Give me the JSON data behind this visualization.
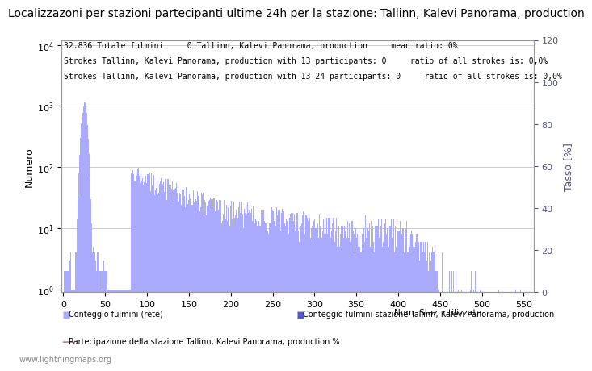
{
  "title": "Localizzazoni per stazioni partecipanti ultime 24h per la stazione: Tallinn, Kalevi Panorama, production",
  "annotation_line1": "32.836 Totale fulmini     0 Tallinn, Kalevi Panorama, production     mean ratio: 0%",
  "annotation_line2": "Strokes Tallinn, Kalevi Panorama, production with 13 participants: 0     ratio of all strokes is: 0,0%",
  "annotation_line3": "Strokes Tallinn, Kalevi Panorama, production with 13-24 participants: 0     ratio of all strokes is: 0,0%",
  "ylabel_left": "Numero",
  "ylabel_right": "Tasso [%]",
  "xlabel": "Num. Staz. utilizzate",
  "xlim": [
    0,
    560
  ],
  "ylim_right": [
    0,
    120
  ],
  "yticks_right": [
    0,
    20,
    40,
    60,
    80,
    100,
    120
  ],
  "bar_color": "#aaaaff",
  "bar_dark_color": "#5555cc",
  "line_color": "#cc88aa",
  "legend_label_0": "Conteggio fulmini (rete)",
  "legend_label_1": "Conteggio fulmini stazione Tallinn, Kalevi Panorama, production",
  "legend_label_2": "Partecipazione della stazione Tallinn, Kalevi Panorama, production %",
  "watermark": "www.lightningmaps.org",
  "background_color": "#ffffff",
  "grid_color": "#cccccc",
  "title_fontsize": 10,
  "annotation_fontsize": 7,
  "axis_fontsize": 9,
  "tick_fontsize": 8
}
